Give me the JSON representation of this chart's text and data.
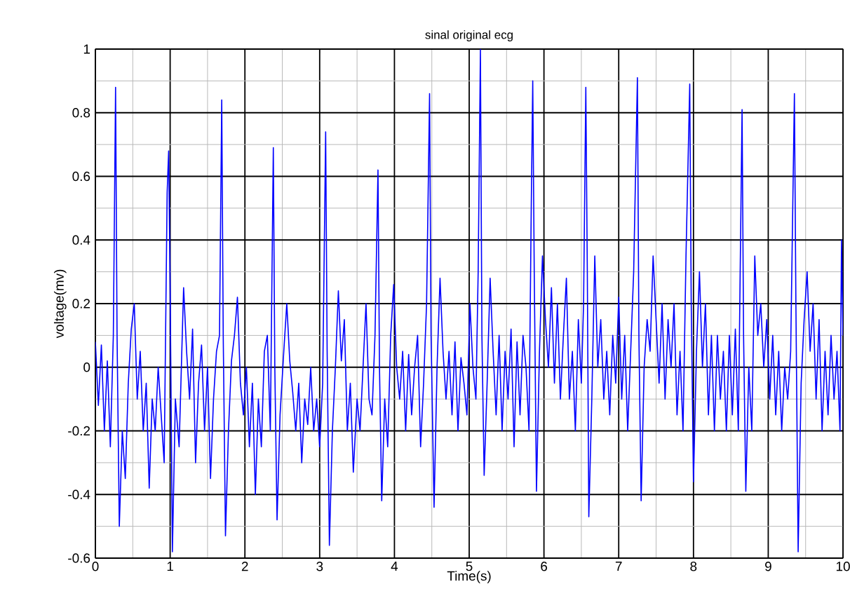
{
  "chart_data": {
    "type": "line",
    "title": "sinal original ecg",
    "xlabel": "Time(s)",
    "ylabel": "voltage(mv)",
    "xlim": [
      0,
      10
    ],
    "ylim": [
      -0.6,
      1
    ],
    "xticks": [
      0,
      1,
      2,
      3,
      4,
      5,
      6,
      7,
      8,
      9,
      10
    ],
    "yticks": [
      -0.6,
      -0.4,
      -0.2,
      0,
      0.2,
      0.4,
      0.6,
      0.8,
      1
    ],
    "grid": true,
    "line_style": "solid",
    "series": [
      {
        "color": "#0000ff",
        "x": [
          0,
          0.04,
          0.08,
          0.12,
          0.16,
          0.2,
          0.24,
          0.27,
          0.29,
          0.32,
          0.36,
          0.4,
          0.44,
          0.48,
          0.52,
          0.56,
          0.6,
          0.64,
          0.68,
          0.72,
          0.76,
          0.8,
          0.84,
          0.88,
          0.92,
          0.96,
          0.98,
          1.0,
          1.03,
          1.07,
          1.12,
          1.18,
          1.22,
          1.26,
          1.3,
          1.34,
          1.38,
          1.42,
          1.46,
          1.5,
          1.54,
          1.58,
          1.62,
          1.66,
          1.69,
          1.71,
          1.74,
          1.78,
          1.82,
          1.86,
          1.9,
          1.94,
          1.98,
          2.02,
          2.06,
          2.1,
          2.14,
          2.18,
          2.22,
          2.26,
          2.3,
          2.34,
          2.38,
          2.4,
          2.43,
          2.47,
          2.52,
          2.56,
          2.6,
          2.64,
          2.68,
          2.72,
          2.76,
          2.8,
          2.84,
          2.88,
          2.92,
          2.96,
          3.0,
          3.04,
          3.08,
          3.1,
          3.13,
          3.17,
          3.21,
          3.25,
          3.29,
          3.33,
          3.37,
          3.41,
          3.45,
          3.5,
          3.54,
          3.58,
          3.62,
          3.66,
          3.7,
          3.74,
          3.78,
          3.8,
          3.83,
          3.87,
          3.91,
          3.95,
          3.99,
          4.03,
          4.07,
          4.11,
          4.15,
          4.19,
          4.23,
          4.27,
          4.31,
          4.35,
          4.39,
          4.43,
          4.47,
          4.49,
          4.53,
          4.57,
          4.61,
          4.65,
          4.69,
          4.73,
          4.77,
          4.81,
          4.85,
          4.89,
          4.93,
          4.97,
          5.01,
          5.05,
          5.09,
          5.12,
          5.15,
          5.17,
          5.2,
          5.24,
          5.28,
          5.32,
          5.36,
          5.4,
          5.44,
          5.48,
          5.52,
          5.56,
          5.6,
          5.64,
          5.68,
          5.72,
          5.76,
          5.8,
          5.83,
          5.85,
          5.87,
          5.9,
          5.94,
          5.98,
          6.02,
          6.06,
          6.1,
          6.14,
          6.18,
          6.22,
          6.26,
          6.3,
          6.34,
          6.38,
          6.42,
          6.46,
          6.5,
          6.53,
          6.56,
          6.58,
          6.6,
          6.64,
          6.68,
          6.72,
          6.76,
          6.8,
          6.84,
          6.88,
          6.92,
          6.96,
          7.0,
          7.04,
          7.08,
          7.12,
          7.16,
          7.2,
          7.25,
          7.27,
          7.3,
          7.34,
          7.38,
          7.42,
          7.46,
          7.5,
          7.54,
          7.58,
          7.62,
          7.66,
          7.7,
          7.74,
          7.78,
          7.82,
          7.86,
          7.9,
          7.95,
          7.97,
          8.0,
          8.04,
          8.08,
          8.12,
          8.16,
          8.2,
          8.24,
          8.28,
          8.32,
          8.36,
          8.4,
          8.44,
          8.48,
          8.52,
          8.56,
          8.6,
          8.65,
          8.67,
          8.7,
          8.74,
          8.78,
          8.82,
          8.86,
          8.9,
          8.94,
          8.98,
          9.02,
          9.06,
          9.1,
          9.14,
          9.18,
          9.22,
          9.26,
          9.3,
          9.35,
          9.37,
          9.4,
          9.44,
          9.48,
          9.52,
          9.56,
          9.6,
          9.64,
          9.68,
          9.72,
          9.76,
          9.8,
          9.84,
          9.88,
          9.92,
          9.96,
          9.98,
          10.0
        ],
        "values": [
          0.08,
          -0.12,
          0.07,
          -0.2,
          0.02,
          -0.25,
          0.1,
          0.88,
          0.1,
          -0.5,
          -0.2,
          -0.35,
          -0.05,
          0.12,
          0.2,
          -0.1,
          0.05,
          -0.2,
          -0.05,
          -0.38,
          -0.1,
          -0.2,
          0.0,
          -0.15,
          -0.3,
          0.55,
          0.68,
          0.25,
          -0.58,
          -0.1,
          -0.25,
          0.25,
          0.05,
          -0.1,
          0.12,
          -0.3,
          -0.05,
          0.07,
          -0.2,
          0.0,
          -0.35,
          -0.1,
          0.05,
          0.1,
          0.84,
          0.1,
          -0.53,
          -0.2,
          0.02,
          0.1,
          0.22,
          -0.05,
          -0.15,
          0.0,
          -0.25,
          -0.05,
          -0.4,
          -0.1,
          -0.25,
          0.05,
          0.1,
          -0.2,
          0.69,
          0.0,
          -0.48,
          -0.15,
          0.05,
          0.2,
          0.02,
          -0.08,
          -0.2,
          -0.05,
          -0.3,
          -0.1,
          -0.18,
          0.0,
          -0.2,
          -0.1,
          -0.25,
          -0.05,
          0.74,
          0.05,
          -0.56,
          -0.2,
          0.0,
          0.24,
          0.02,
          0.15,
          -0.2,
          -0.05,
          -0.33,
          -0.1,
          -0.2,
          0.0,
          0.2,
          -0.1,
          -0.15,
          0.1,
          0.62,
          0.0,
          -0.42,
          -0.1,
          -0.25,
          0.1,
          0.26,
          0.0,
          -0.1,
          0.05,
          -0.2,
          0.04,
          -0.15,
          0.0,
          0.1,
          -0.25,
          -0.05,
          0.2,
          0.86,
          0.1,
          -0.44,
          0.0,
          0.28,
          0.05,
          -0.1,
          0.05,
          -0.15,
          0.08,
          -0.2,
          0.03,
          -0.05,
          -0.15,
          0.2,
          0.0,
          -0.1,
          0.3,
          1.0,
          0.1,
          -0.34,
          -0.05,
          0.28,
          0.05,
          -0.15,
          0.1,
          -0.2,
          0.05,
          -0.1,
          0.12,
          -0.25,
          0.08,
          -0.15,
          0.1,
          0.0,
          -0.2,
          0.5,
          0.9,
          0.3,
          -0.39,
          0.05,
          0.35,
          0.15,
          0.0,
          0.25,
          -0.05,
          0.2,
          -0.1,
          0.1,
          0.28,
          -0.1,
          0.05,
          -0.2,
          0.15,
          -0.05,
          0.2,
          0.88,
          0.3,
          -0.47,
          -0.1,
          0.35,
          0.0,
          0.15,
          -0.1,
          0.05,
          -0.15,
          0.1,
          -0.05,
          0.22,
          -0.1,
          0.1,
          -0.2,
          0.05,
          0.3,
          0.91,
          0.1,
          -0.42,
          0.0,
          0.15,
          0.05,
          0.35,
          0.15,
          -0.05,
          0.2,
          -0.1,
          0.15,
          0.0,
          0.2,
          -0.15,
          0.05,
          -0.2,
          0.35,
          0.89,
          0.2,
          -0.36,
          0.05,
          0.3,
          0.0,
          0.2,
          -0.15,
          0.1,
          -0.2,
          0.1,
          -0.1,
          0.05,
          -0.2,
          0.1,
          -0.15,
          0.12,
          -0.2,
          0.81,
          0.1,
          -0.39,
          0.0,
          -0.2,
          0.35,
          0.1,
          0.2,
          0.0,
          0.15,
          -0.1,
          0.1,
          -0.15,
          0.05,
          -0.2,
          0.0,
          -0.1,
          0.05,
          0.86,
          0.2,
          -0.58,
          -0.05,
          0.15,
          0.3,
          0.05,
          0.2,
          -0.1,
          0.15,
          -0.2,
          0.05,
          -0.15,
          0.1,
          -0.1,
          0.05,
          -0.2,
          0.4,
          0.1
        ]
      }
    ]
  }
}
